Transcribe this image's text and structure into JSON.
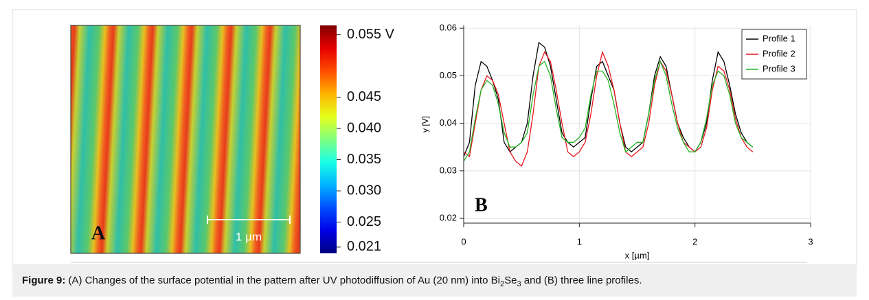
{
  "chart_data": [
    {
      "type": "image",
      "panel_label": "A",
      "scale_bar": "1 µm",
      "colormap": "jet",
      "clim": [
        0.02,
        0.0565
      ],
      "cticks": [
        {
          "value": 0.055,
          "label": "0.055 V"
        },
        0.045,
        {
          "value": 0.04,
          "label": "0.040"
        },
        0.035,
        {
          "value": 0.03,
          "label": "0.030"
        },
        0.025,
        0.021
      ]
    },
    {
      "type": "line",
      "panel_label": "B",
      "xlabel": "x [µm]",
      "ylabel": "y [V]",
      "xlim": [
        0,
        3
      ],
      "xticks": [
        0,
        1,
        2,
        3
      ],
      "ylim": [
        0.019,
        0.0606
      ],
      "yticks": [
        0.02,
        0.03,
        0.04,
        0.05,
        0.06
      ],
      "grid": true,
      "legend": "upper right",
      "x": [
        0,
        0.05,
        0.1,
        0.15,
        0.2,
        0.25,
        0.3,
        0.35,
        0.4,
        0.45,
        0.5,
        0.55,
        0.6,
        0.65,
        0.7,
        0.75,
        0.8,
        0.85,
        0.9,
        0.95,
        1,
        1.05,
        1.1,
        1.15,
        1.2,
        1.25,
        1.3,
        1.35,
        1.4,
        1.45,
        1.5,
        1.55,
        1.6,
        1.65,
        1.7,
        1.75,
        1.8,
        1.85,
        1.9,
        1.95,
        2,
        2.05,
        2.1,
        2.15,
        2.2,
        2.25,
        2.3,
        2.35,
        2.4,
        2.45,
        2.5
      ],
      "series": [
        {
          "name": "Profile 1",
          "color": "#000000",
          "values": [
            0.033,
            0.036,
            0.048,
            0.053,
            0.052,
            0.049,
            0.045,
            0.036,
            0.034,
            0.035,
            0.036,
            0.04,
            0.05,
            0.057,
            0.056,
            0.052,
            0.045,
            0.038,
            0.036,
            0.035,
            0.036,
            0.037,
            0.045,
            0.052,
            0.053,
            0.05,
            0.047,
            0.04,
            0.035,
            0.034,
            0.035,
            0.036,
            0.042,
            0.05,
            0.054,
            0.052,
            0.046,
            0.04,
            0.037,
            0.035,
            0.034,
            0.036,
            0.04,
            0.049,
            0.055,
            0.053,
            0.048,
            0.042,
            0.038,
            0.036,
            0.035
          ]
        },
        {
          "name": "Profile 2",
          "color": "#e8141c",
          "values": [
            0.034,
            0.033,
            0.04,
            0.047,
            0.05,
            0.049,
            0.046,
            0.04,
            0.034,
            0.032,
            0.031,
            0.034,
            0.042,
            0.052,
            0.055,
            0.053,
            0.047,
            0.04,
            0.034,
            0.033,
            0.034,
            0.036,
            0.042,
            0.05,
            0.055,
            0.052,
            0.047,
            0.04,
            0.034,
            0.033,
            0.034,
            0.035,
            0.04,
            0.048,
            0.053,
            0.051,
            0.046,
            0.04,
            0.036,
            0.035,
            0.034,
            0.035,
            0.039,
            0.047,
            0.052,
            0.051,
            0.047,
            0.041,
            0.037,
            0.035,
            0.034
          ]
        },
        {
          "name": "Profile 3",
          "color": "#22b422",
          "values": [
            0.032,
            0.034,
            0.041,
            0.047,
            0.049,
            0.048,
            0.044,
            0.038,
            0.035,
            0.035,
            0.036,
            0.038,
            0.046,
            0.052,
            0.053,
            0.05,
            0.043,
            0.037,
            0.036,
            0.036,
            0.037,
            0.039,
            0.046,
            0.051,
            0.051,
            0.049,
            0.044,
            0.038,
            0.034,
            0.035,
            0.036,
            0.036,
            0.042,
            0.049,
            0.053,
            0.05,
            0.044,
            0.039,
            0.036,
            0.034,
            0.034,
            0.036,
            0.041,
            0.048,
            0.051,
            0.05,
            0.046,
            0.04,
            0.037,
            0.036,
            0.035
          ]
        }
      ]
    }
  ],
  "caption": {
    "label": "Figure 9:",
    "parts": [
      "(A) Changes of the surface potential in the pattern after UV photodiffusion of Au (20 nm) into Bi",
      "2",
      "Se",
      "3",
      " and (B) three line profiles."
    ]
  }
}
